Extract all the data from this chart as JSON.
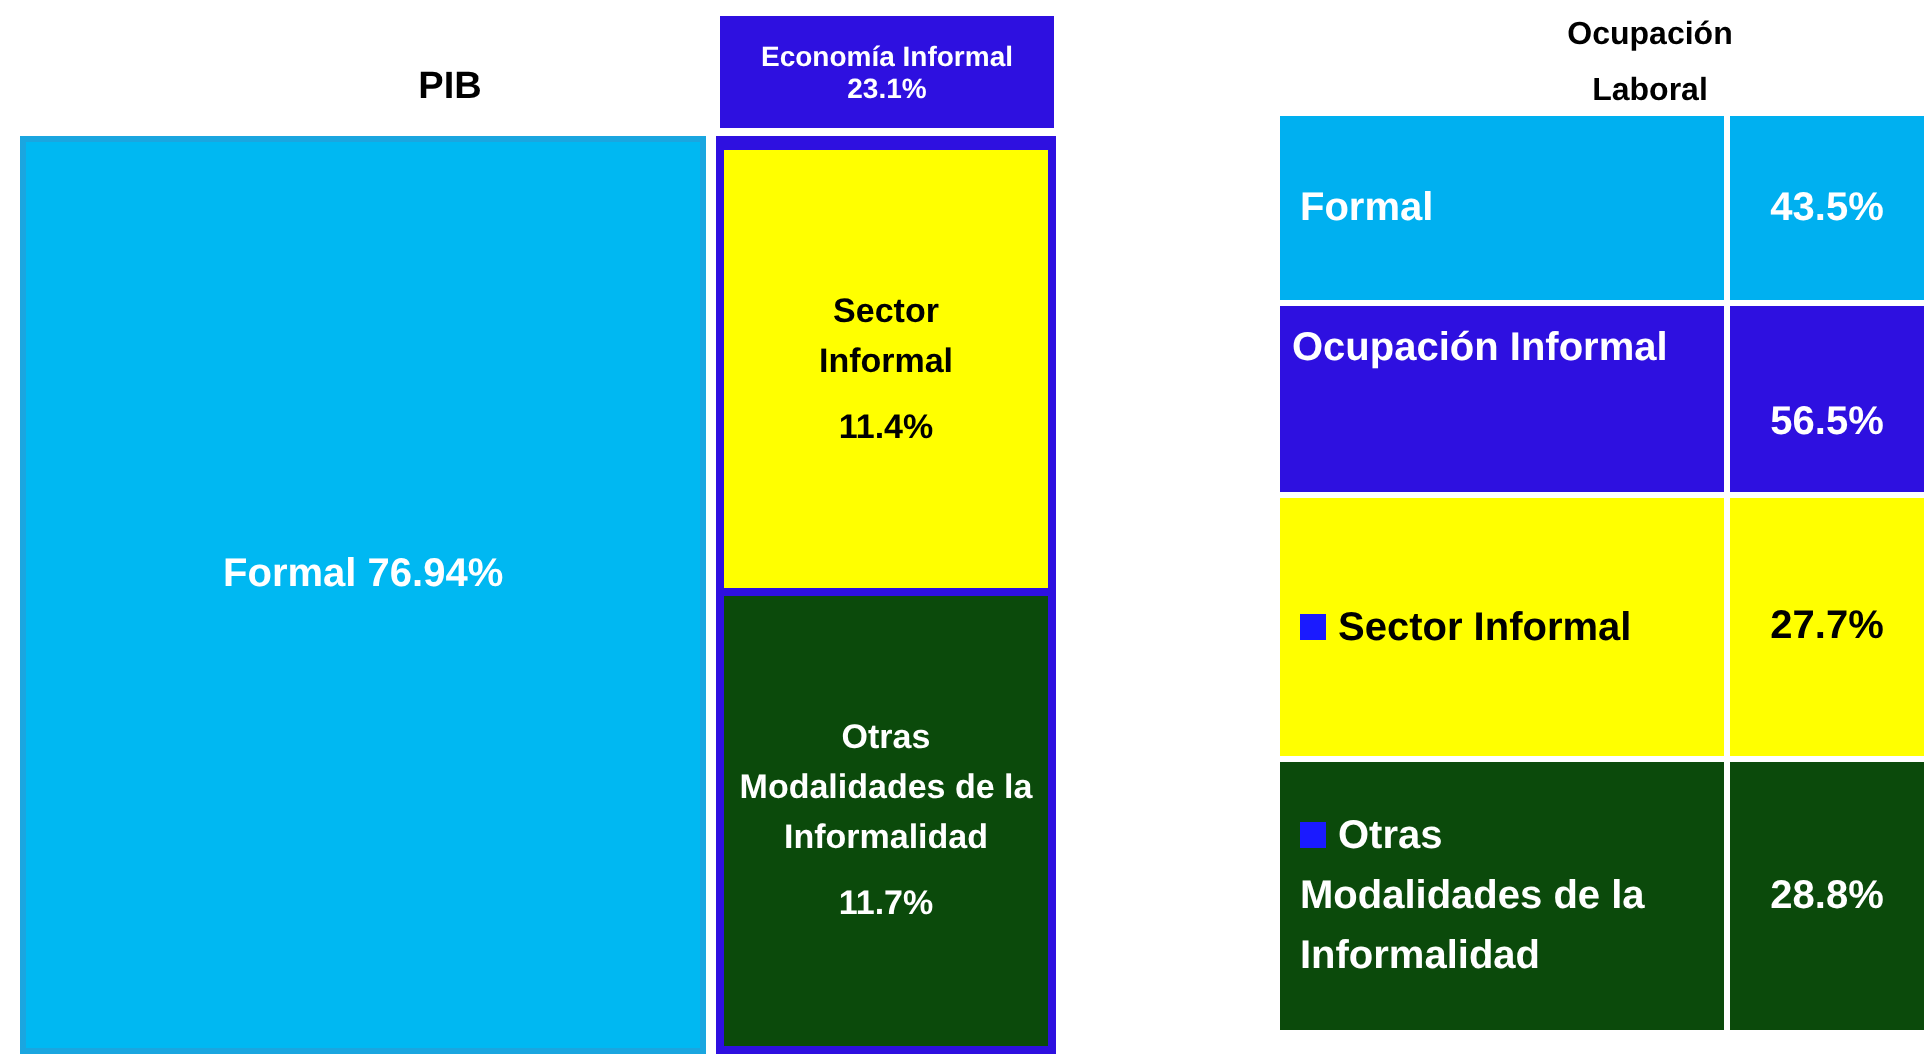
{
  "chart_data": [
    {
      "type": "other",
      "title": "PIB",
      "categories": [
        "Formal",
        "Sector Informal",
        "Otras Modalidades de la Informalidad"
      ],
      "values": [
        76.94,
        11.4,
        11.7
      ],
      "value_labels": [
        "76.94%",
        "11.4%",
        "11.7%"
      ],
      "colors": [
        "#00b8f2",
        "#ffff00",
        "#0b4a0b"
      ],
      "annotations": [
        "Economía Informal 23.1%"
      ]
    },
    {
      "type": "other",
      "title": "Ocupación Laboral",
      "categories": [
        "Formal",
        "Ocupación Informal",
        "Sector Informal",
        "Otras Modalidades de la Informalidad"
      ],
      "values": [
        43.5,
        56.5,
        27.7,
        28.8
      ],
      "value_labels": [
        "43.5%",
        "56.5%",
        "27.7%",
        "28.8%"
      ],
      "colors": [
        "#00b0f0",
        "#2e10e0",
        "#ffff00",
        "#0b4a0b"
      ]
    }
  ]
}
